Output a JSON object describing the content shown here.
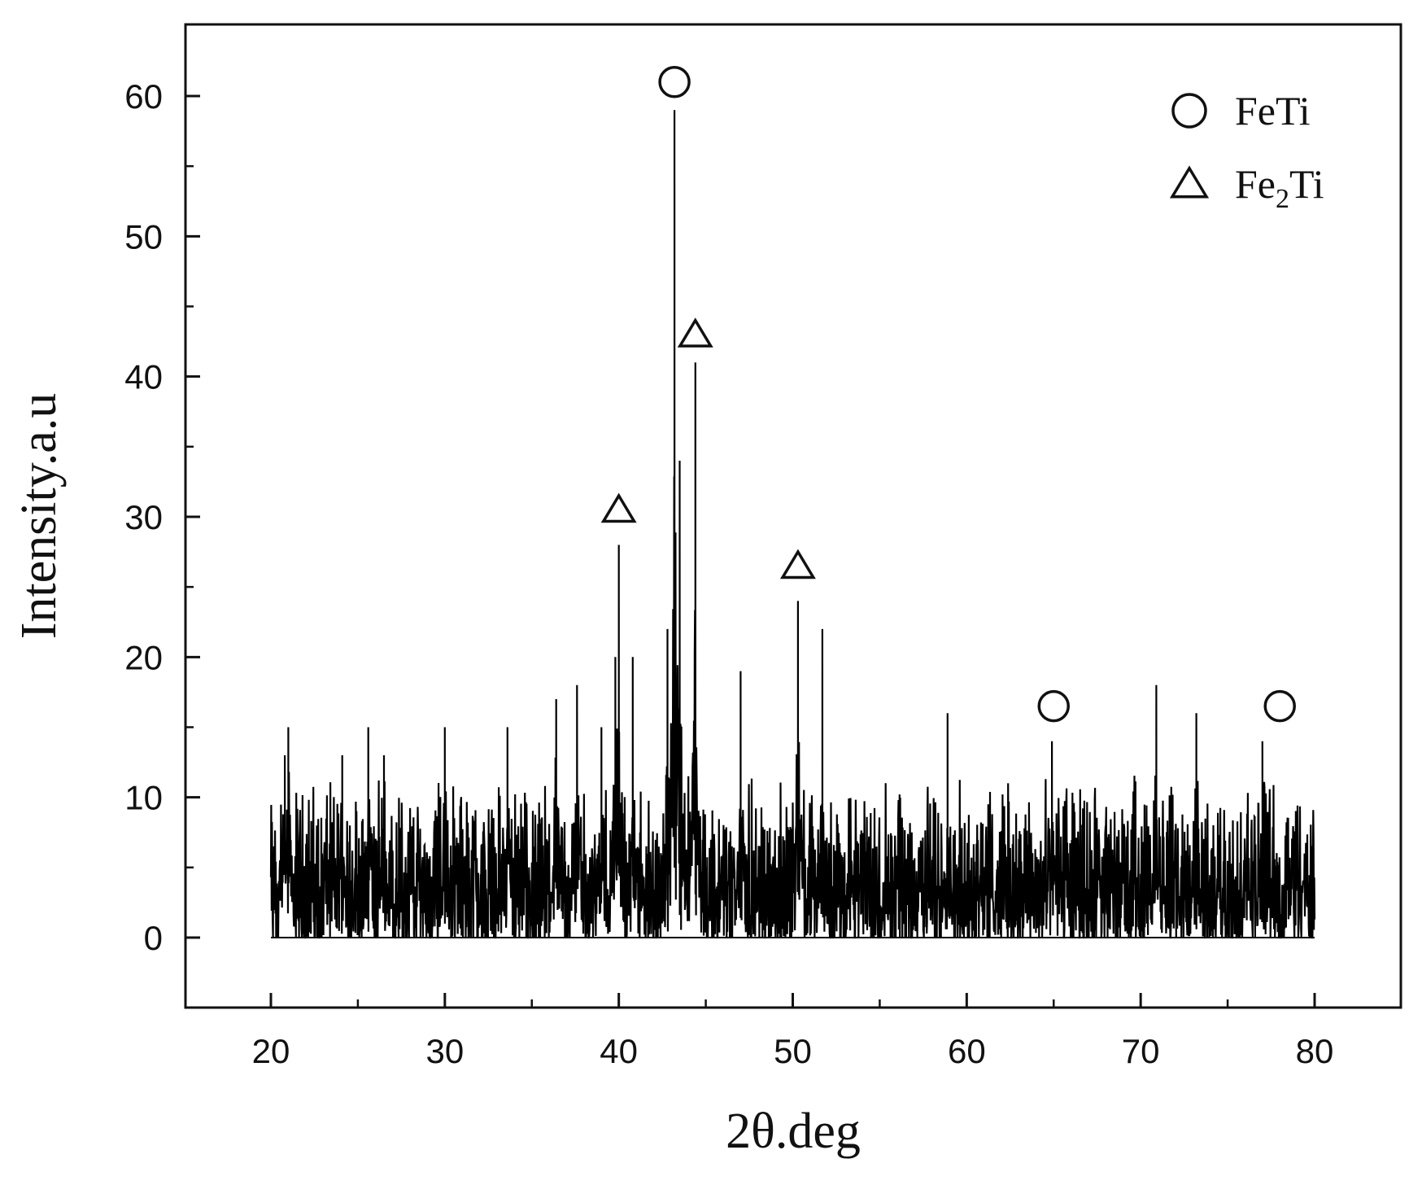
{
  "chart_data": {
    "type": "line",
    "title": "",
    "xlabel": "2θ.deg",
    "ylabel": "Intensity.a.u",
    "xlim": [
      15,
      83
    ],
    "ylim": [
      -5,
      65
    ],
    "xticks": [
      20,
      30,
      40,
      50,
      60,
      70,
      80
    ],
    "yticks": [
      0,
      10,
      20,
      30,
      40,
      50,
      60
    ],
    "grid": false,
    "legend_position": "top-right",
    "series": [
      {
        "style": "spiky noisy line",
        "x_range": [
          20,
          80
        ],
        "baseline_noise_max": 12,
        "peaks": [
          {
            "x": 20.8,
            "y": 13
          },
          {
            "x": 21.0,
            "y": 15
          },
          {
            "x": 24.1,
            "y": 13
          },
          {
            "x": 25.6,
            "y": 15
          },
          {
            "x": 26.5,
            "y": 13
          },
          {
            "x": 30.0,
            "y": 15
          },
          {
            "x": 33.6,
            "y": 15
          },
          {
            "x": 36.4,
            "y": 17
          },
          {
            "x": 37.6,
            "y": 18
          },
          {
            "x": 39.0,
            "y": 15
          },
          {
            "x": 39.8,
            "y": 20
          },
          {
            "x": 40.0,
            "y": 28
          },
          {
            "x": 40.8,
            "y": 20
          },
          {
            "x": 42.8,
            "y": 22
          },
          {
            "x": 43.2,
            "y": 59
          },
          {
            "x": 43.5,
            "y": 34
          },
          {
            "x": 44.4,
            "y": 41
          },
          {
            "x": 47.0,
            "y": 19
          },
          {
            "x": 50.3,
            "y": 24
          },
          {
            "x": 51.7,
            "y": 22
          },
          {
            "x": 58.9,
            "y": 16
          },
          {
            "x": 64.9,
            "y": 14
          },
          {
            "x": 70.9,
            "y": 18
          },
          {
            "x": 73.2,
            "y": 16
          },
          {
            "x": 77.0,
            "y": 14
          }
        ]
      }
    ],
    "annotations": [
      {
        "marker": "circle",
        "phase": "FeTi",
        "x": 43.2,
        "y": 61
      },
      {
        "marker": "triangle",
        "phase": "Fe2Ti",
        "x": 44.4,
        "y": 43
      },
      {
        "marker": "triangle",
        "phase": "Fe2Ti",
        "x": 40.0,
        "y": 30.5
      },
      {
        "marker": "triangle",
        "phase": "Fe2Ti",
        "x": 50.3,
        "y": 26.5
      },
      {
        "marker": "circle",
        "phase": "FeTi",
        "x": 65.0,
        "y": 16.5
      },
      {
        "marker": "circle",
        "phase": "FeTi",
        "x": 78.0,
        "y": 16.5
      }
    ],
    "legend": [
      {
        "marker": "circle",
        "label_main": "FeTi",
        "label_pre": "FeTi",
        "label_sub": "",
        "label_post": ""
      },
      {
        "marker": "triangle",
        "label_main": "Fe2Ti",
        "label_pre": "Fe",
        "label_sub": "2",
        "label_post": "Ti"
      }
    ]
  }
}
